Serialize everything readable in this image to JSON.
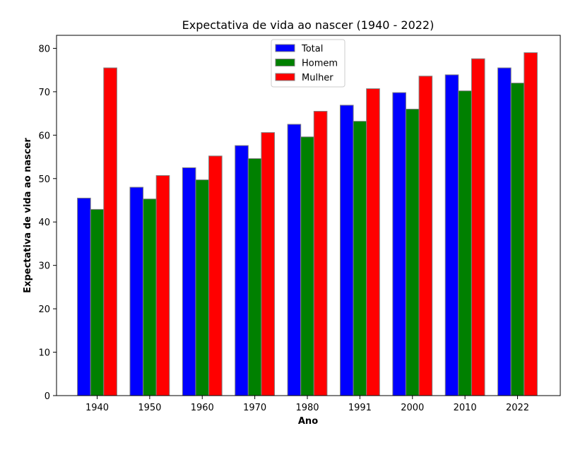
{
  "chart_data": {
    "type": "bar",
    "title": "Expectativa de vida ao nascer (1940 - 2022)",
    "xlabel": "Ano",
    "ylabel": "Expectativa de vida ao nascer",
    "categories": [
      "1940",
      "1950",
      "1960",
      "1970",
      "1980",
      "1991",
      "2000",
      "2010",
      "2022"
    ],
    "series": [
      {
        "name": "Total",
        "color": "#0000ff",
        "values": [
          45.5,
          48.0,
          52.5,
          57.6,
          62.5,
          66.9,
          69.8,
          73.9,
          75.5
        ]
      },
      {
        "name": "Homem",
        "color": "#008000",
        "values": [
          42.9,
          45.3,
          49.7,
          54.6,
          59.6,
          63.2,
          66.0,
          70.2,
          72.0
        ]
      },
      {
        "name": "Mulher",
        "color": "#ff0000",
        "values": [
          75.5,
          50.7,
          55.2,
          60.6,
          65.5,
          70.7,
          73.6,
          77.6,
          79.0
        ]
      }
    ],
    "ylim": [
      0,
      83
    ],
    "yticks": [
      0,
      10,
      20,
      30,
      40,
      50,
      60,
      70,
      80
    ],
    "grid": false,
    "legend_position": "top-center"
  }
}
